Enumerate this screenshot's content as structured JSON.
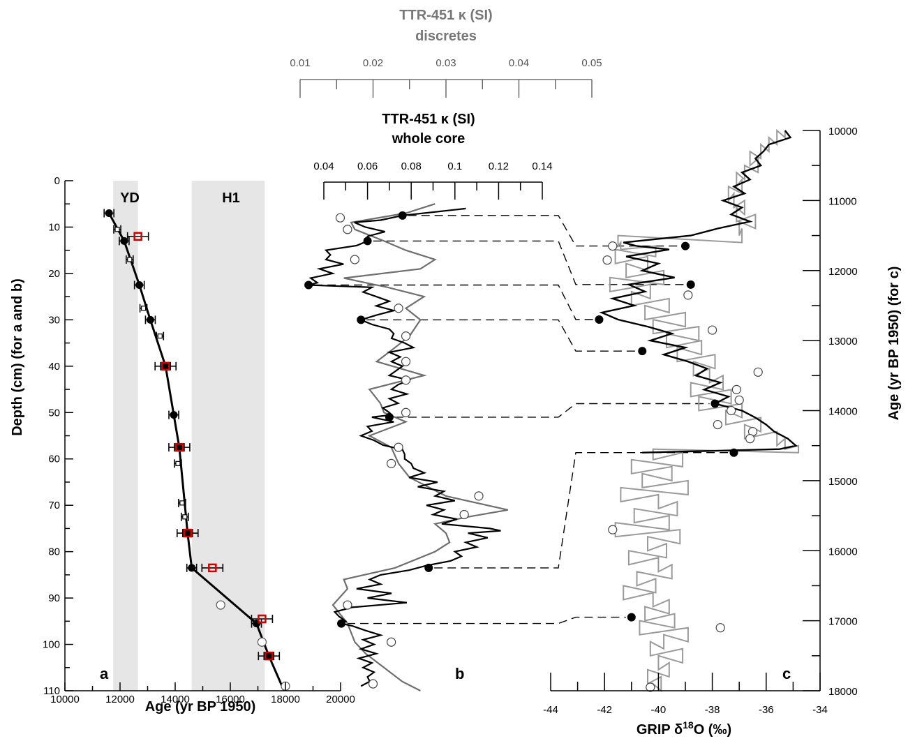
{
  "chart_data": [
    {
      "panel": "a",
      "type": "scatter",
      "xlabel": "Age (yr BP 1950)",
      "ylabel": "Depth (cm) (for a and b)",
      "xlim": [
        10000,
        20000
      ],
      "ylim": [
        0,
        110
      ],
      "y_inverted": true,
      "xticks": [
        10000,
        12000,
        14000,
        16000,
        18000,
        20000
      ],
      "yticks": [
        0,
        10,
        20,
        30,
        40,
        50,
        60,
        70,
        80,
        90,
        100,
        110
      ],
      "bands": [
        {
          "label": "YD",
          "range": [
            11750,
            12650
          ]
        },
        {
          "label": "H1",
          "range": [
            14600,
            17250
          ]
        }
      ],
      "series": [
        {
          "role": "age_model_line",
          "points": [
            [
              11600,
              7
            ],
            [
              12150,
              13
            ],
            [
              12700,
              22.5
            ],
            [
              13100,
              30
            ],
            [
              13650,
              40
            ],
            [
              13950,
              50.5
            ],
            [
              14150,
              57.5
            ],
            [
              14450,
              76
            ],
            [
              14600,
              83.5
            ],
            [
              16950,
              95.5
            ],
            [
              17400,
              102.5
            ],
            [
              17950,
              110
            ]
          ]
        },
        {
          "role": "black_dots",
          "points": [
            [
              11600,
              7
            ],
            [
              12150,
              13
            ],
            [
              12700,
              22.5
            ],
            [
              13100,
              30
            ],
            [
              13650,
              40
            ],
            [
              13950,
              50.5
            ],
            [
              14150,
              57.5
            ],
            [
              14450,
              76
            ],
            [
              14600,
              83.5
            ],
            [
              16950,
              95.5
            ],
            [
              17400,
              102.5
            ]
          ]
        },
        {
          "role": "open_bars",
          "points": [
            [
              11900,
              10.5
            ],
            [
              12350,
              17
            ],
            [
              12850,
              27.5
            ],
            [
              13450,
              33.5
            ],
            [
              14100,
              61
            ],
            [
              14250,
              69.5
            ],
            [
              14350,
              72.5
            ]
          ]
        },
        {
          "role": "red_squares",
          "points": [
            [
              12650,
              12
            ],
            [
              13650,
              40
            ],
            [
              14150,
              57.5
            ],
            [
              14450,
              76
            ],
            [
              15350,
              83.5
            ],
            [
              17150,
              94.5
            ],
            [
              17400,
              102.5
            ]
          ]
        },
        {
          "role": "open_circles",
          "points": [
            [
              15650,
              91.5
            ],
            [
              17150,
              99.5
            ],
            [
              18000,
              109
            ]
          ]
        }
      ]
    },
    {
      "panel": "b",
      "type": "line",
      "title_top": [
        "TTR-451 κ (SI)",
        "discretes"
      ],
      "title_bottom": [
        "TTR-451 κ (SI)",
        "whole core"
      ],
      "top_axis_ticks": [
        "0.01",
        "0.02",
        "0.03",
        "0.04",
        "0.05"
      ],
      "bottom_axis_ticks": [
        "0.04",
        "0.06",
        "0.08",
        "0.1",
        "0.12",
        "0.14"
      ],
      "xlim_whole_core": [
        0.04,
        0.14
      ],
      "xlim_discretes": [
        0.01,
        0.05
      ],
      "series": [
        {
          "role": "whole_core",
          "depth": [
            6,
            7.5,
            8.5,
            9,
            10,
            11,
            12,
            13,
            14,
            15,
            16,
            17,
            18,
            19,
            20,
            21,
            22,
            22.5,
            23,
            24,
            25,
            26,
            27,
            28,
            29,
            30,
            31,
            32,
            33,
            34,
            35,
            36,
            37,
            38,
            39,
            40,
            41,
            42,
            43,
            44,
            45,
            46,
            47,
            48,
            49,
            50,
            50.5,
            51,
            52,
            53,
            54,
            55,
            56,
            57,
            58,
            59,
            60,
            61,
            62,
            63,
            64,
            65,
            66,
            67,
            68,
            69,
            70,
            71,
            72,
            73,
            74,
            75,
            75.5,
            76,
            77,
            78,
            79,
            80,
            81,
            82,
            83,
            84,
            85,
            86,
            87,
            88,
            89,
            90,
            91,
            92,
            93,
            94,
            95,
            95.5,
            96,
            97,
            98,
            99,
            100,
            101,
            102,
            103,
            104,
            105,
            106,
            107,
            108,
            109
          ],
          "k": [
            0.105,
            0.076,
            0.066,
            0.054,
            0.059,
            0.068,
            0.06,
            0.06,
            0.055,
            0.041,
            0.043,
            0.041,
            0.049,
            0.038,
            0.044,
            0.034,
            0.037,
            0.033,
            0.062,
            0.058,
            0.064,
            0.07,
            0.064,
            0.072,
            0.064,
            0.057,
            0.062,
            0.07,
            0.072,
            0.071,
            0.077,
            0.081,
            0.07,
            0.075,
            0.071,
            0.076,
            0.073,
            0.07,
            0.079,
            0.074,
            0.071,
            0.078,
            0.07,
            0.074,
            0.067,
            0.07,
            0.071,
            0.062,
            0.072,
            0.06,
            0.062,
            0.057,
            0.063,
            0.067,
            0.076,
            0.077,
            0.077,
            0.08,
            0.081,
            0.086,
            0.079,
            0.092,
            0.083,
            0.095,
            0.091,
            0.1,
            0.087,
            0.095,
            0.09,
            0.101,
            0.094,
            0.116,
            0.121,
            0.106,
            0.115,
            0.105,
            0.11,
            0.1,
            0.103,
            0.098,
            0.087,
            0.079,
            0.066,
            0.061,
            0.066,
            0.055,
            0.071,
            0.06,
            0.078,
            0.053,
            0.045,
            0.047,
            0.05,
            0.048,
            0.053,
            0.059,
            0.066,
            0.058,
            0.063,
            0.057,
            0.064,
            0.056,
            0.062,
            0.058,
            0.063,
            0.06,
            0.061,
            0.057
          ]
        },
        {
          "role": "discretes",
          "depth": [
            5,
            7,
            9,
            10.5,
            13,
            15,
            17,
            19,
            21,
            23,
            25,
            27.5,
            30,
            33.5,
            36,
            39,
            42,
            45,
            48,
            50,
            52,
            55,
            57.5,
            61,
            64,
            68,
            71,
            72.5,
            74,
            76,
            78,
            80,
            83.5,
            86,
            88,
            91.5,
            95.5,
            99.5,
            102,
            105,
            108,
            110
          ],
          "k": [
            0.0285,
            0.0245,
            0.017,
            0.0175,
            0.0215,
            0.0245,
            0.0285,
            0.0265,
            0.016,
            0.022,
            0.027,
            0.0245,
            0.0265,
            0.025,
            0.023,
            0.0205,
            0.027,
            0.0195,
            0.021,
            0.0215,
            0.0245,
            0.0195,
            0.0225,
            0.0235,
            0.025,
            0.03,
            0.0385,
            0.033,
            0.0285,
            0.03,
            0.0305,
            0.0285,
            0.023,
            0.016,
            0.0165,
            0.0145,
            0.0165,
            0.0175,
            0.019,
            0.0215,
            0.024,
            0.0265
          ]
        },
        {
          "role": "tie_points_black",
          "points": [
            [
              7.5,
              0.076
            ],
            [
              13,
              0.06
            ],
            [
              22.5,
              0.033
            ],
            [
              30,
              0.057
            ],
            [
              51,
              0.07
            ],
            [
              83.5,
              0.088
            ],
            [
              95.5,
              0.048
            ]
          ]
        },
        {
          "role": "discrete_open_circles",
          "points": [
            [
              8,
              0.0155
            ],
            [
              10.5,
              0.0165
            ],
            [
              17,
              0.0175
            ],
            [
              27.5,
              0.0235
            ],
            [
              33.5,
              0.0245
            ],
            [
              39,
              0.0245
            ],
            [
              43,
              0.0245
            ],
            [
              50,
              0.0245
            ],
            [
              57.5,
              0.0235
            ],
            [
              61,
              0.0225
            ],
            [
              68,
              0.0345
            ],
            [
              72,
              0.0325
            ],
            [
              91.5,
              0.0165
            ],
            [
              99.5,
              0.0225
            ],
            [
              108.5,
              0.02
            ]
          ]
        }
      ]
    },
    {
      "panel": "c",
      "type": "line",
      "xlabel": "GRIP δ18O (‰)",
      "ylabel": "Age (yr BP 1950) (for c)",
      "xlim": [
        -44,
        -34
      ],
      "ylim": [
        10000,
        18000
      ],
      "xticks": [
        "-44",
        "-42",
        "-40",
        "-38",
        "-36",
        "-34"
      ],
      "yticks": [
        "10000",
        "11000",
        "12000",
        "13000",
        "14000",
        "15000",
        "16000",
        "17000",
        "18000"
      ],
      "series": [
        {
          "role": "grip_record_grey",
          "age": [
            10000,
            10100,
            10200,
            10300,
            10400,
            10500,
            10600,
            10700,
            10800,
            10900,
            11000,
            11100,
            11200,
            11300,
            11400,
            11500,
            11600,
            11650,
            11700,
            11800,
            11900,
            12000,
            12100,
            12200,
            12300,
            12400,
            12500,
            12600,
            12700,
            12800,
            12900,
            13000,
            13100,
            13200,
            13300,
            13400,
            13500,
            13600,
            13700,
            13800,
            13900,
            14000,
            14100,
            14200,
            14300,
            14400,
            14500,
            14550,
            14600,
            14700,
            14800,
            14900,
            15000,
            15100,
            15200,
            15300,
            15400,
            15500,
            15600,
            15700,
            15800,
            15900,
            16000,
            16100,
            16200,
            16300,
            16400,
            16500,
            16600,
            16700,
            16800,
            16900,
            17000,
            17100,
            17200,
            17300,
            17400,
            17500,
            17600,
            17700,
            17800,
            17900,
            18000
          ],
          "d18o": [
            -35.3,
            -35.6,
            -35.9,
            -36.2,
            -36.6,
            -36.3,
            -36.8,
            -37.1,
            -36.9,
            -37.4,
            -37.2,
            -36.8,
            -37.1,
            -36.4,
            -37.0,
            -36.9,
            -41.5,
            -41.4,
            -40.1,
            -41.6,
            -40.4,
            -41.2,
            -39.8,
            -41.8,
            -40.3,
            -41.0,
            -39.6,
            -40.5,
            -39.0,
            -40.2,
            -38.5,
            -39.7,
            -38.4,
            -39.3,
            -37.9,
            -38.7,
            -38.1,
            -37.6,
            -38.8,
            -37.3,
            -38.5,
            -36.9,
            -37.5,
            -36.2,
            -36.8,
            -35.6,
            -35.3,
            -34.8,
            -40.2,
            -39.1,
            -41.0,
            -39.5,
            -40.6,
            -38.9,
            -41.4,
            -40.0,
            -39.3,
            -40.9,
            -39.6,
            -41.6,
            -39.2,
            -40.4,
            -39.7,
            -41.1,
            -40.0,
            -39.5,
            -40.8,
            -40.1,
            -41.3,
            -40.2,
            -39.6,
            -40.5,
            -39.4,
            -40.7,
            -38.9,
            -39.8,
            -40.3,
            -39.1,
            -40.0,
            -39.6,
            -40.4,
            -39.9,
            -40.2
          ]
        },
        {
          "role": "grip_record_black",
          "age": [
            10000,
            10100,
            10200,
            10300,
            10400,
            10500,
            10600,
            10700,
            10800,
            10900,
            11000,
            11100,
            11200,
            11300,
            11400,
            11500,
            11600,
            11650,
            11700,
            11800,
            11900,
            12000,
            12100,
            12200,
            12300,
            12400,
            12500,
            12600,
            12700,
            12800,
            12900,
            13000,
            13100,
            13200,
            13300,
            13400,
            13500,
            13600,
            13700,
            13800,
            13900,
            14000,
            14100,
            14200,
            14300,
            14400,
            14500,
            14550,
            14600
          ],
          "d18o": [
            -35.3,
            -35.1,
            -35.9,
            -36.1,
            -36.4,
            -36.2,
            -36.9,
            -36.6,
            -37.2,
            -36.8,
            -37.6,
            -36.9,
            -37.3,
            -36.6,
            -37.8,
            -38.8,
            -41.3,
            -40.8,
            -39.6,
            -41.2,
            -40.0,
            -40.6,
            -39.4,
            -41.1,
            -40.5,
            -41.7,
            -40.9,
            -42.1,
            -41.5,
            -40.4,
            -39.5,
            -40.3,
            -39.0,
            -39.8,
            -38.9,
            -38.2,
            -38.6,
            -37.7,
            -38.3,
            -37.4,
            -37.9,
            -36.9,
            -36.4,
            -36.0,
            -35.7,
            -35.2,
            -34.9,
            -35.5,
            -40.6
          ]
        },
        {
          "role": "tie_points_black",
          "points": [
            [
              11650,
              -39.0
            ],
            [
              12200,
              -38.8
            ],
            [
              12700,
              -42.2
            ],
            [
              13150,
              -40.6
            ],
            [
              13900,
              -37.9
            ],
            [
              14600,
              -37.2
            ],
            [
              16950,
              -41.0
            ]
          ]
        },
        {
          "role": "open_circles",
          "points": [
            [
              11650,
              -41.7
            ],
            [
              11850,
              -41.9
            ],
            [
              12350,
              -38.9
            ],
            [
              12850,
              -38.0
            ],
            [
              13450,
              -36.3
            ],
            [
              13700,
              -37.1
            ],
            [
              13850,
              -37.0
            ],
            [
              14000,
              -37.3
            ],
            [
              14200,
              -37.8
            ],
            [
              14300,
              -36.5
            ],
            [
              14400,
              -36.6
            ],
            [
              15700,
              -41.7
            ],
            [
              17100,
              -37.7
            ],
            [
              17950,
              -40.3
            ]
          ]
        }
      ]
    }
  ],
  "labels": {
    "panel_a": "a",
    "panel_b": "b",
    "panel_c": "c",
    "band_yd": "YD",
    "band_h1": "H1",
    "b_top_title_1": "TTR-451 κ (SI)",
    "b_top_title_2": "discretes",
    "b_bottom_title_1": "TTR-451 κ (SI)",
    "b_bottom_title_2": "whole core",
    "a_xlabel": "Age (yr BP 1950)",
    "a_ylabel": "Depth (cm) (for a and b)",
    "c_xlabel_main": "GRIP δ",
    "c_xlabel_sup": "18",
    "c_xlabel_tail": "O (‰)",
    "c_ylabel": "Age (yr BP 1950) (for c)"
  },
  "colors": {
    "black": "#000000",
    "grey_line": "#6e6e6e",
    "grip_grey": "#9a9a9a",
    "band": "#e6e6e6",
    "red_square": "#d40000",
    "axis_grey": "#777777"
  }
}
